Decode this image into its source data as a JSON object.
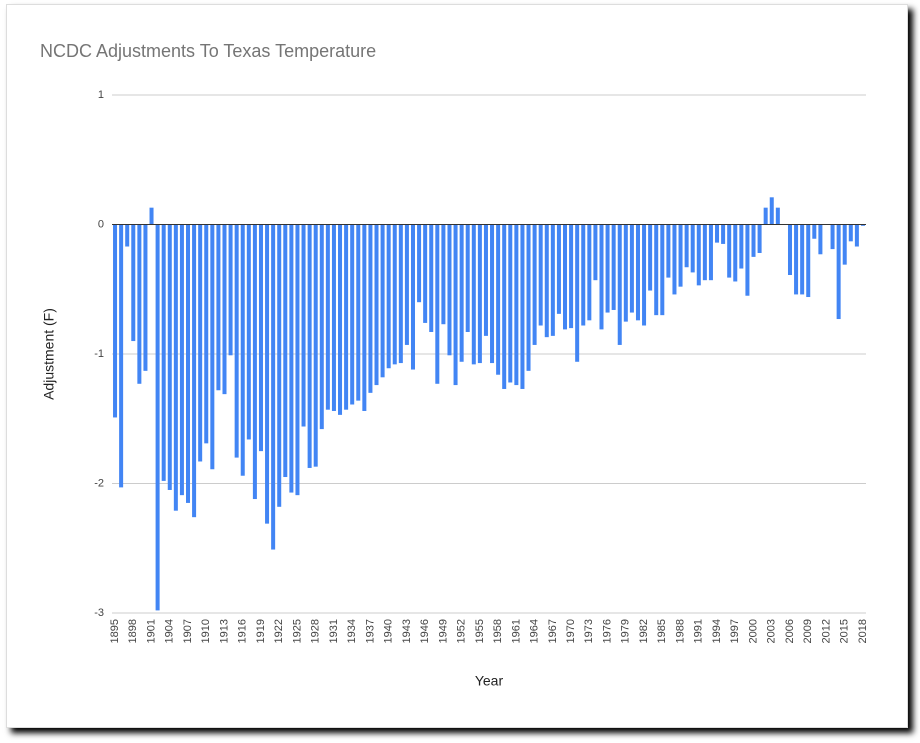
{
  "chart_data": {
    "type": "bar",
    "title": "NCDC Adjustments To Texas Temperature",
    "x_label": "Year",
    "y_label": "Adjustment (F)",
    "categories": [
      "1895",
      null,
      null,
      "1898",
      null,
      null,
      "1901",
      null,
      null,
      "1904",
      null,
      null,
      "1907",
      null,
      null,
      "1910",
      null,
      null,
      "1913",
      null,
      null,
      "1916",
      null,
      null,
      "1919",
      null,
      null,
      "1922",
      null,
      null,
      "1925",
      null,
      null,
      "1928",
      null,
      null,
      "1931",
      null,
      null,
      "1934",
      null,
      null,
      "1937",
      null,
      null,
      "1940",
      null,
      null,
      "1943",
      null,
      null,
      "1946",
      null,
      null,
      "1949",
      null,
      null,
      "1952",
      null,
      null,
      "1955",
      null,
      null,
      "1958",
      null,
      null,
      "1961",
      null,
      null,
      "1964",
      null,
      null,
      "1967",
      null,
      null,
      "1970",
      null,
      null,
      "1973",
      null,
      null,
      "1976",
      null,
      null,
      "1979",
      null,
      null,
      "1982",
      null,
      null,
      "1985",
      null,
      null,
      "1988",
      null,
      null,
      "1991",
      null,
      null,
      "1994",
      null,
      null,
      "1997",
      null,
      null,
      "2000",
      null,
      null,
      "2003",
      null,
      null,
      "2006",
      null,
      null,
      "2009",
      null,
      null,
      "2012",
      null,
      null,
      "2015",
      null,
      null,
      "2018"
    ],
    "values": [
      -1.49,
      -2.03,
      -0.17,
      -0.9,
      -1.23,
      -1.13,
      0.13,
      -2.98,
      -1.98,
      -2.05,
      -2.21,
      -2.09,
      -2.15,
      -2.26,
      -1.83,
      -1.69,
      -1.89,
      -1.28,
      -1.31,
      -1.01,
      -1.8,
      -1.94,
      -1.66,
      -2.12,
      -1.75,
      -2.31,
      -2.51,
      -2.18,
      -1.95,
      -2.07,
      -2.09,
      -1.56,
      -1.88,
      -1.87,
      -1.58,
      -1.43,
      -1.44,
      -1.47,
      -1.43,
      -1.39,
      -1.36,
      -1.44,
      -1.3,
      -1.24,
      -1.18,
      -1.11,
      -1.08,
      -1.07,
      -0.93,
      -1.12,
      -0.6,
      -0.76,
      -0.83,
      -1.23,
      -0.77,
      -1.01,
      -1.24,
      -1.06,
      -0.83,
      -1.08,
      -1.07,
      -0.86,
      -1.07,
      -1.16,
      -1.27,
      -1.22,
      -1.24,
      -1.27,
      -1.13,
      -0.93,
      -0.78,
      -0.87,
      -0.86,
      -0.69,
      -0.81,
      -0.8,
      -1.06,
      -0.78,
      -0.74,
      -0.43,
      -0.81,
      -0.68,
      -0.66,
      -0.93,
      -0.75,
      -0.68,
      -0.74,
      -0.78,
      -0.51,
      -0.7,
      -0.7,
      -0.41,
      -0.54,
      -0.48,
      -0.33,
      -0.37,
      -0.47,
      -0.43,
      -0.43,
      -0.14,
      -0.15,
      -0.41,
      -0.44,
      -0.34,
      -0.55,
      -0.25,
      -0.22,
      0.13,
      0.21,
      0.13,
      0,
      -0.39,
      -0.54,
      -0.54,
      -0.56,
      -0.11,
      -0.23,
      0,
      -0.19,
      -0.73,
      -0.31,
      -0.13,
      -0.17,
      -0.01
    ],
    "color": "#4285f4",
    "ylim": [
      -3,
      1
    ],
    "yticks": [
      1,
      0,
      -1,
      -2,
      -3
    ],
    "grid": true
  }
}
